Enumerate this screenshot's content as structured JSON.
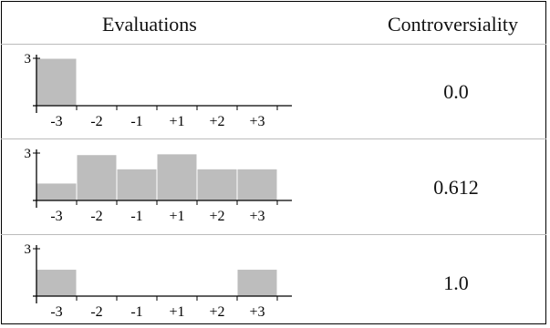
{
  "headers": {
    "evaluations": "Evaluations",
    "controversiality": "Controversiality"
  },
  "chart_data": [
    {
      "type": "bar",
      "categories": [
        "-3",
        "-2",
        "-1",
        "+1",
        "+2",
        "+3"
      ],
      "values": [
        3,
        0,
        0,
        0,
        0,
        0
      ],
      "ytick": "3",
      "ylim": [
        0,
        3
      ],
      "controversiality": "0.0"
    },
    {
      "type": "bar",
      "categories": [
        "-3",
        "-2",
        "-1",
        "+1",
        "+2",
        "+3"
      ],
      "values": [
        1.1,
        2.9,
        2.0,
        2.95,
        2.0,
        2.0
      ],
      "ytick": "3",
      "ylim": [
        0,
        3
      ],
      "controversiality": "0.612"
    },
    {
      "type": "bar",
      "categories": [
        "-3",
        "-2",
        "-1",
        "+1",
        "+2",
        "+3"
      ],
      "values": [
        1.7,
        0,
        0,
        0,
        0,
        1.7
      ],
      "ytick": "3",
      "ylim": [
        0,
        3
      ],
      "controversiality": "1.0"
    }
  ]
}
